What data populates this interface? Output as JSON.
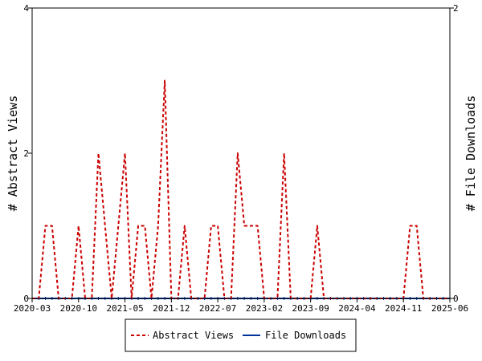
{
  "chart_data": {
    "type": "line",
    "x_start": "2020-03",
    "x_end": "2025-06",
    "x_ticks": [
      "2020-03",
      "2020-10",
      "2021-05",
      "2021-12",
      "2022-07",
      "2023-02",
      "2023-09",
      "2024-04",
      "2024-11",
      "2025-06"
    ],
    "left_axis": {
      "label": "# Abstract Views",
      "ylim": [
        0,
        4
      ],
      "ticks": [
        "0",
        "2",
        "4"
      ]
    },
    "right_axis": {
      "label": "# File Downloads",
      "ylim": [
        0,
        2
      ],
      "ticks": [
        "0",
        "2"
      ]
    },
    "x": [
      "2020-03",
      "2020-04",
      "2020-05",
      "2020-06",
      "2020-07",
      "2020-08",
      "2020-09",
      "2020-10",
      "2020-11",
      "2020-12",
      "2021-01",
      "2021-02",
      "2021-03",
      "2021-04",
      "2021-05",
      "2021-06",
      "2021-07",
      "2021-08",
      "2021-09",
      "2021-10",
      "2021-11",
      "2021-12",
      "2022-01",
      "2022-02",
      "2022-03",
      "2022-04",
      "2022-05",
      "2022-06",
      "2022-07",
      "2022-08",
      "2022-09",
      "2022-10",
      "2022-11",
      "2022-12",
      "2023-01",
      "2023-02",
      "2023-03",
      "2023-04",
      "2023-05",
      "2023-06",
      "2023-07",
      "2023-08",
      "2023-09",
      "2023-10",
      "2023-11",
      "2023-12",
      "2024-01",
      "2024-02",
      "2024-03",
      "2024-04",
      "2024-05",
      "2024-06",
      "2024-07",
      "2024-08",
      "2024-09",
      "2024-10",
      "2024-11",
      "2024-12",
      "2025-01",
      "2025-02",
      "2025-03",
      "2025-04",
      "2025-05",
      "2025-06"
    ],
    "series": [
      {
        "name": "Abstract Views",
        "axis": "left",
        "color": "#cc0000",
        "style": "dashed",
        "values": [
          0,
          0,
          1,
          1,
          0,
          0,
          0,
          1,
          0,
          0,
          2,
          1,
          0,
          1,
          2,
          0,
          1,
          1,
          0,
          1,
          3,
          0,
          0,
          1,
          0,
          0,
          0,
          1,
          1,
          0,
          0,
          2,
          1,
          1,
          1,
          0,
          0,
          0,
          2,
          0,
          0,
          0,
          0,
          1,
          0,
          0,
          0,
          0,
          0,
          0,
          0,
          0,
          0,
          0,
          0,
          0,
          0,
          1,
          1,
          0,
          0,
          0,
          0,
          0
        ]
      },
      {
        "name": "File Downloads",
        "axis": "right",
        "color": "#00339a",
        "style": "solid",
        "values": [
          0,
          0,
          0,
          0,
          0,
          0,
          0,
          0,
          0,
          0,
          0,
          0,
          0,
          0,
          0,
          0,
          0,
          0,
          0,
          0,
          0,
          0,
          0,
          0,
          0,
          0,
          0,
          0,
          0,
          0,
          0,
          0,
          0,
          0,
          0,
          0,
          0,
          0,
          0,
          0,
          0,
          0,
          0,
          0,
          0,
          0,
          0,
          0,
          0,
          0,
          0,
          0,
          0,
          0,
          0,
          0,
          0,
          0,
          0,
          0,
          0,
          0,
          0,
          0
        ]
      }
    ],
    "legend": {
      "position": "bottom",
      "entries": [
        "Abstract Views",
        "File Downloads"
      ]
    },
    "grid": false
  }
}
